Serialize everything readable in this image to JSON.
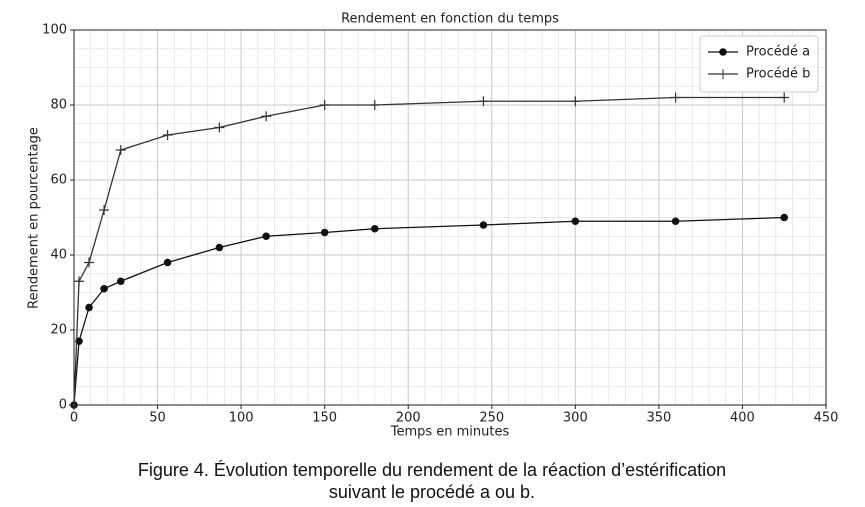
{
  "chart_data": {
    "type": "line",
    "title": "Rendement en fonction du temps",
    "xlabel": "Temps en minutes",
    "ylabel": "Rendement en pourcentage",
    "x": [
      0,
      3,
      9,
      18,
      28,
      56,
      87,
      115,
      150,
      180,
      245,
      300,
      360,
      425
    ],
    "series": [
      {
        "name": "Procédé a",
        "color": "#111111",
        "marker": "circle",
        "values": [
          0,
          17,
          26,
          31,
          33,
          38,
          42,
          45,
          46,
          47,
          48,
          49,
          49,
          50
        ]
      },
      {
        "name": "Procédé b",
        "color": "#333333",
        "marker": "plus",
        "values": [
          0,
          33,
          38,
          52,
          68,
          72,
          74,
          77,
          80,
          80,
          81,
          81,
          82,
          82
        ]
      }
    ],
    "xlim": [
      0,
      450
    ],
    "ylim": [
      0,
      100
    ],
    "xticks": [
      0,
      50,
      100,
      150,
      200,
      250,
      300,
      350,
      400,
      450
    ],
    "yticks": [
      0,
      20,
      40,
      60,
      80,
      100
    ],
    "minor_xticks": [
      10,
      20,
      30,
      40,
      60,
      70,
      80,
      90,
      110,
      120,
      130,
      140,
      160,
      170,
      180,
      190,
      210,
      220,
      230,
      240,
      260,
      270,
      280,
      290,
      310,
      320,
      330,
      340,
      360,
      370,
      380,
      390,
      410,
      420,
      430,
      440
    ],
    "minor_yticks": [
      5,
      10,
      15,
      25,
      30,
      35,
      45,
      50,
      55,
      65,
      70,
      75,
      85,
      90,
      95
    ],
    "grid": true,
    "legend": "upper right"
  },
  "caption": {
    "line1": "Figure 4. Évolution temporelle du rendement de la réaction d’estérification",
    "line2": "suivant le procédé a ou b."
  }
}
